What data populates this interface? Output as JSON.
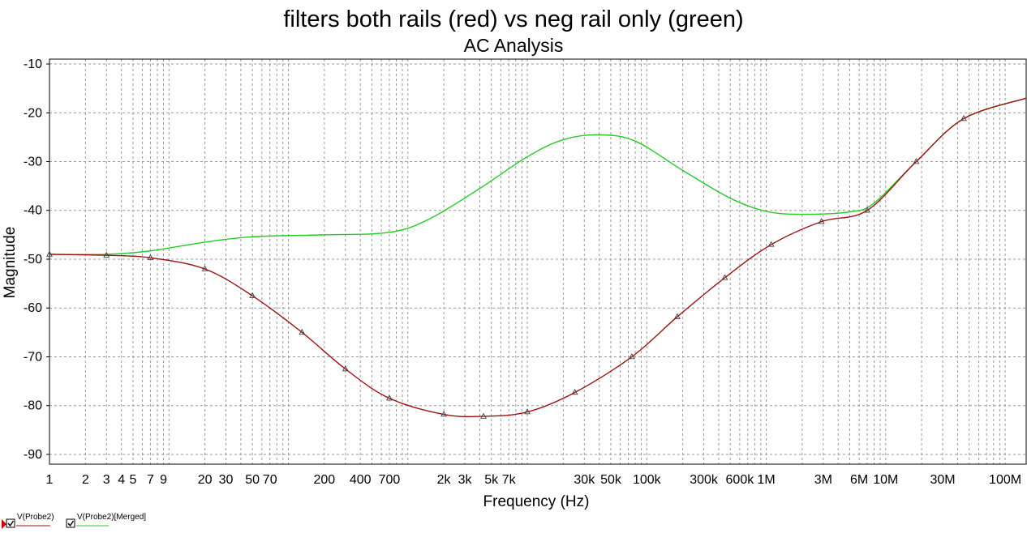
{
  "chart_data": {
    "type": "line",
    "title": "filters both rails (red) vs neg rail only (green)",
    "subtitle": "AC Analysis",
    "xlabel": "Frequency (Hz)",
    "ylabel": "Magnitude",
    "x_scale": "log",
    "xlim": [
      1,
      150000000
    ],
    "ylim": [
      -92,
      -9
    ],
    "grid": true,
    "x_ticks": [
      {
        "value": 1,
        "label": "1"
      },
      {
        "value": 2,
        "label": "2"
      },
      {
        "value": 3,
        "label": "3"
      },
      {
        "value": 4,
        "label": "4"
      },
      {
        "value": 5,
        "label": "5"
      },
      {
        "value": 7,
        "label": "7"
      },
      {
        "value": 9,
        "label": "9"
      },
      {
        "value": 20,
        "label": "20"
      },
      {
        "value": 30,
        "label": "30"
      },
      {
        "value": 50,
        "label": "50"
      },
      {
        "value": 70,
        "label": "70"
      },
      {
        "value": 200,
        "label": "200"
      },
      {
        "value": 400,
        "label": "400"
      },
      {
        "value": 700,
        "label": "700"
      },
      {
        "value": 2000,
        "label": "2k"
      },
      {
        "value": 3000,
        "label": "3k"
      },
      {
        "value": 5000,
        "label": "5k"
      },
      {
        "value": 7000,
        "label": "7k"
      },
      {
        "value": 30000,
        "label": "30k"
      },
      {
        "value": 50000,
        "label": "50k"
      },
      {
        "value": 100000,
        "label": "100k"
      },
      {
        "value": 300000,
        "label": "300k"
      },
      {
        "value": 600000,
        "label": "600k"
      },
      {
        "value": 1000000,
        "label": "1M"
      },
      {
        "value": 3000000,
        "label": "3M"
      },
      {
        "value": 6000000,
        "label": "6M"
      },
      {
        "value": 10000000,
        "label": "10M"
      },
      {
        "value": 30000000,
        "label": "30M"
      },
      {
        "value": 100000000,
        "label": "100M"
      }
    ],
    "y_ticks": [
      {
        "value": -10,
        "label": "-10"
      },
      {
        "value": -20,
        "label": "-20"
      },
      {
        "value": -30,
        "label": "-30"
      },
      {
        "value": -40,
        "label": "-40"
      },
      {
        "value": -50,
        "label": "-50"
      },
      {
        "value": -60,
        "label": "-60"
      },
      {
        "value": -70,
        "label": "-70"
      },
      {
        "value": -80,
        "label": "-80"
      },
      {
        "value": -90,
        "label": "-90"
      }
    ],
    "series": [
      {
        "name": "V(Probe2)",
        "color": "#a01010",
        "marker": "triangle",
        "x": [
          1,
          3,
          7,
          20,
          50,
          130,
          300,
          700,
          2000,
          4300,
          10000,
          25000,
          75000,
          180000,
          450000,
          1100000,
          2900000,
          7000000,
          18000000,
          45000000,
          150000000
        ],
        "y": [
          -49,
          -49.2,
          -49.7,
          -52,
          -57.5,
          -65,
          -72.5,
          -78.5,
          -81.8,
          -82.2,
          -81.3,
          -77.3,
          -70,
          -61.8,
          -53.8,
          -47,
          -42.3,
          -40,
          -30,
          -21.2,
          -17
        ],
        "marker_x": [
          3,
          7,
          20,
          50,
          130,
          300,
          700,
          2000,
          4300,
          10000,
          25000,
          75000,
          180000,
          450000,
          1100000,
          2900000,
          7000000,
          18000000,
          45000000
        ],
        "marker_y": [
          -49.2,
          -49.7,
          -52,
          -57.5,
          -65,
          -72.5,
          -78.5,
          -81.8,
          -82.2,
          -81.3,
          -77.3,
          -70,
          -61.8,
          -53.8,
          -47,
          -42.3,
          -40,
          -30,
          -21.2
        ]
      },
      {
        "name": "V(Probe2)[Merged]",
        "color": "#22cc22",
        "marker": "triangle",
        "x": [
          1,
          3,
          7,
          20,
          50,
          200,
          700,
          1500,
          4000,
          10000,
          20000,
          40000,
          80000,
          200000,
          500000,
          1000000,
          2000000,
          5000000,
          8000000,
          18000000,
          45000000,
          150000000
        ],
        "y": [
          -49,
          -49,
          -48.3,
          -46.5,
          -45.4,
          -45,
          -44.5,
          -41.8,
          -35.5,
          -29,
          -25.5,
          -24.5,
          -25.8,
          -31.8,
          -37.5,
          -40.2,
          -40.8,
          -40.3,
          -38.5,
          -30,
          -21.2,
          -17
        ],
        "marker_x": [
          1
        ],
        "marker_y": [
          -49
        ]
      }
    ]
  }
}
